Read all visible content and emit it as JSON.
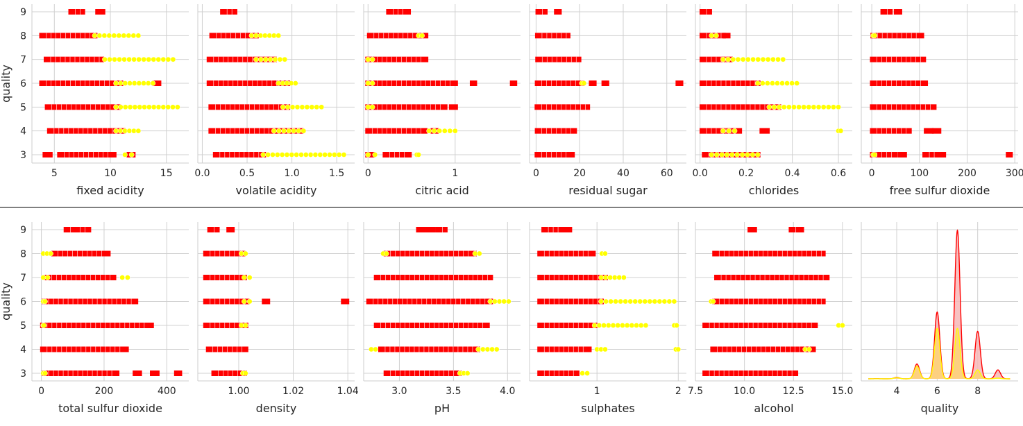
{
  "chart_data": [
    {
      "type": "scatter",
      "xlabel": "fixed acidity",
      "ylabel": "quality",
      "xlim": [
        3,
        17
      ],
      "xticks": [
        5,
        10,
        15
      ],
      "red": [
        [
          3,
          5.5,
          10.3
        ],
        [
          3,
          4.2,
          4.6
        ],
        [
          3,
          11.7,
          12.0
        ],
        [
          4,
          4.6,
          11.1
        ],
        [
          5,
          4.4,
          10.7
        ],
        [
          6,
          3.9,
          10.9
        ],
        [
          6,
          14.0,
          14.3
        ],
        [
          7,
          4.3,
          9.2
        ],
        [
          8,
          3.9,
          8.6
        ],
        [
          9,
          6.5,
          7.5
        ],
        [
          9,
          8.9,
          9.3
        ]
      ],
      "yellow": [
        [
          3,
          11.3,
          11.9
        ],
        [
          4,
          10.5,
          12.5
        ],
        [
          5,
          10.5,
          16.0
        ],
        [
          6,
          10.5,
          13.8
        ],
        [
          7,
          9.5,
          15.6
        ],
        [
          8,
          8.6,
          12.5
        ]
      ]
    },
    {
      "type": "scatter",
      "xlabel": "volatile acidity",
      "ylabel": "",
      "xlim": [
        -0.05,
        1.7
      ],
      "xticks": [
        0.0,
        0.5,
        1.0,
        1.5
      ],
      "red": [
        [
          3,
          0.15,
          0.68
        ],
        [
          4,
          0.1,
          0.8
        ],
        [
          4,
          0.85,
          1.1
        ],
        [
          5,
          0.1,
          0.95
        ],
        [
          6,
          0.08,
          0.95
        ],
        [
          7,
          0.08,
          0.8
        ],
        [
          8,
          0.11,
          0.6
        ],
        [
          9,
          0.23,
          0.36
        ]
      ],
      "yellow": [
        [
          3,
          0.68,
          1.58
        ],
        [
          4,
          0.8,
          1.13
        ],
        [
          5,
          0.9,
          1.33
        ],
        [
          6,
          0.85,
          1.04
        ],
        [
          7,
          0.6,
          0.92
        ],
        [
          8,
          0.55,
          0.85
        ]
      ]
    },
    {
      "type": "scatter",
      "xlabel": "citric acid",
      "ylabel": "",
      "xlim": [
        -0.05,
        1.75
      ],
      "xticks": [
        0,
        1
      ],
      "red": [
        [
          3,
          0.0,
          0.05
        ],
        [
          3,
          0.2,
          0.47
        ],
        [
          4,
          0.0,
          0.65
        ],
        [
          4,
          0.75,
          0.78
        ],
        [
          5,
          0.0,
          0.88
        ],
        [
          5,
          0.96,
          1.0
        ],
        [
          6,
          0.0,
          1.0
        ],
        [
          6,
          1.2,
          1.22
        ],
        [
          6,
          1.66,
          1.68
        ],
        [
          7,
          0.0,
          0.66
        ],
        [
          8,
          0.02,
          0.66
        ],
        [
          9,
          0.24,
          0.46
        ]
      ],
      "yellow": [
        [
          3,
          0.0,
          0.08
        ],
        [
          3,
          0.56,
          0.58
        ],
        [
          4,
          0.7,
          1.0
        ],
        [
          5,
          0.0,
          0.05
        ],
        [
          6,
          0.0,
          0.05
        ],
        [
          7,
          0.0,
          0.05
        ],
        [
          8,
          0.58,
          0.62
        ]
      ]
    },
    {
      "type": "scatter",
      "xlabel": "residual sugar",
      "ylabel": "",
      "xlim": [
        -3,
        69
      ],
      "xticks": [
        0,
        20,
        40,
        60
      ],
      "red": [
        [
          3,
          0.6,
          16.5
        ],
        [
          4,
          0.7,
          17.5
        ],
        [
          5,
          0.6,
          23.5
        ],
        [
          6,
          0.7,
          21
        ],
        [
          6,
          25.5,
          26.5
        ],
        [
          6,
          31.3,
          32.3
        ],
        [
          6,
          65.3,
          66.3
        ],
        [
          7,
          0.9,
          19.5
        ],
        [
          8,
          0.8,
          14.5
        ],
        [
          9,
          1.0,
          4.0
        ],
        [
          9,
          9.5,
          10.5
        ]
      ],
      "yellow": [
        [
          6,
          21,
          22
        ]
      ]
    },
    {
      "type": "scatter",
      "xlabel": "chlorides",
      "ylabel": "",
      "xlim": [
        -0.02,
        0.66
      ],
      "xticks": [
        0.0,
        0.2,
        0.4,
        0.6
      ],
      "red": [
        [
          3,
          0.02,
          0.25
        ],
        [
          4,
          0.01,
          0.17
        ],
        [
          4,
          0.27,
          0.29
        ],
        [
          5,
          0.01,
          0.34
        ],
        [
          6,
          0.01,
          0.25
        ],
        [
          7,
          0.01,
          0.13
        ],
        [
          8,
          0.01,
          0.1
        ],
        [
          8,
          0.11,
          0.12
        ],
        [
          9,
          0.01,
          0.04
        ]
      ],
      "yellow": [
        [
          3,
          0.05,
          0.25
        ],
        [
          4,
          0.1,
          0.15
        ],
        [
          4,
          0.6,
          0.61
        ],
        [
          5,
          0.3,
          0.6
        ],
        [
          6,
          0.25,
          0.42
        ],
        [
          7,
          0.1,
          0.36
        ],
        [
          8,
          0.05,
          0.07
        ]
      ]
    },
    {
      "type": "scatter",
      "xlabel": "free sulfur dioxide",
      "ylabel": "",
      "xlim": [
        -22,
        307
      ],
      "xticks": [
        0,
        100,
        200,
        300
      ],
      "red": [
        [
          3,
          2,
          48
        ],
        [
          3,
          60,
          68
        ],
        [
          3,
          112,
          138
        ],
        [
          3,
          145,
          150
        ],
        [
          3,
          287,
          290
        ],
        [
          4,
          2,
          78
        ],
        [
          4,
          115,
          124
        ],
        [
          4,
          132,
          140
        ],
        [
          5,
          2,
          130
        ],
        [
          6,
          2,
          112
        ],
        [
          7,
          2,
          108
        ],
        [
          8,
          3,
          104
        ],
        [
          9,
          24,
          38
        ],
        [
          9,
          52,
          58
        ]
      ],
      "yellow": [
        [
          3,
          3,
          6
        ],
        [
          8,
          3,
          6
        ]
      ]
    },
    {
      "type": "scatter",
      "xlabel": "total sulfur dioxide",
      "ylabel": "quality",
      "xlim": [
        -30,
        470
      ],
      "xticks": [
        0,
        200,
        400
      ],
      "red": [
        [
          3,
          10,
          240
        ],
        [
          3,
          300,
          312
        ],
        [
          3,
          355,
          368
        ],
        [
          3,
          432,
          440
        ],
        [
          4,
          5,
          270
        ],
        [
          5,
          5,
          335
        ],
        [
          5,
          342,
          350
        ],
        [
          6,
          10,
          300
        ],
        [
          7,
          20,
          230
        ],
        [
          8,
          40,
          212
        ],
        [
          9,
          80,
          100
        ],
        [
          9,
          110,
          150
        ]
      ],
      "yellow": [
        [
          3,
          6,
          12
        ],
        [
          5,
          6,
          8
        ],
        [
          6,
          6,
          12
        ],
        [
          7,
          6,
          20
        ],
        [
          7,
          258,
          275
        ],
        [
          8,
          6,
          30
        ]
      ]
    },
    {
      "type": "scatter",
      "xlabel": "density",
      "ylabel": "",
      "xlim": [
        0.985,
        1.0425
      ],
      "xticks": [
        1.0,
        1.02,
        1.04
      ],
      "red": [
        [
          3,
          0.991,
          1.002
        ],
        [
          4,
          0.989,
          1.0025
        ],
        [
          5,
          0.988,
          1.0025
        ],
        [
          6,
          0.988,
          1.003
        ],
        [
          6,
          1.0095,
          1.0105
        ],
        [
          6,
          1.0385,
          1.0395
        ],
        [
          7,
          0.988,
          1.002
        ],
        [
          8,
          0.988,
          1.0015
        ],
        [
          9,
          0.9895,
          0.992
        ],
        [
          9,
          0.9965,
          0.9975
        ]
      ],
      "yellow": [
        [
          3,
          1.0015,
          1.0025
        ],
        [
          5,
          1.001,
          1.0025
        ],
        [
          6,
          1.002,
          1.004
        ],
        [
          7,
          1.002,
          1.004
        ],
        [
          8,
          1.001,
          1.0025
        ]
      ]
    },
    {
      "type": "scatter",
      "xlabel": "pH",
      "ylabel": "",
      "xlim": [
        2.67,
        4.12
      ],
      "xticks": [
        3.0,
        3.5,
        4.0
      ],
      "red": [
        [
          3,
          2.88,
          3.55
        ],
        [
          4,
          2.83,
          3.72
        ],
        [
          5,
          2.79,
          3.81
        ],
        [
          6,
          2.72,
          3.84
        ],
        [
          7,
          2.79,
          3.84
        ],
        [
          8,
          2.88,
          3.69
        ],
        [
          9,
          3.18,
          3.22
        ],
        [
          9,
          3.27,
          3.31
        ],
        [
          9,
          3.36,
          3.42
        ]
      ],
      "yellow": [
        [
          3,
          3.56,
          3.63
        ],
        [
          4,
          2.74,
          2.78
        ],
        [
          4,
          3.73,
          3.9
        ],
        [
          6,
          3.84,
          4.01
        ],
        [
          8,
          2.85,
          2.88
        ],
        [
          8,
          3.7,
          3.74
        ]
      ]
    },
    {
      "type": "scatter",
      "xlabel": "sulphates",
      "ylabel": "",
      "xlim": [
        0.17,
        2.1
      ],
      "xticks": [
        1,
        2
      ],
      "red": [
        [
          3,
          0.3,
          0.75
        ],
        [
          4,
          0.3,
          0.9
        ],
        [
          5,
          0.3,
          0.97
        ],
        [
          6,
          0.3,
          1.05
        ],
        [
          7,
          0.3,
          1.1
        ],
        [
          8,
          0.3,
          0.95
        ],
        [
          9,
          0.35,
          0.55
        ],
        [
          9,
          0.61,
          0.66
        ]
      ],
      "yellow": [
        [
          3,
          0.82,
          0.88
        ],
        [
          4,
          1.0,
          1.1
        ],
        [
          4,
          1.97,
          2.0
        ],
        [
          5,
          0.97,
          1.6
        ],
        [
          5,
          1.95,
          1.98
        ],
        [
          6,
          1.05,
          1.95
        ],
        [
          7,
          1.05,
          1.33
        ],
        [
          8,
          1.06,
          1.1
        ]
      ]
    },
    {
      "type": "scatter",
      "xlabel": "alcohol",
      "ylabel": "",
      "xlim": [
        7.5,
        15.5
      ],
      "xticks": [
        7.5,
        10.0,
        12.5,
        15.0
      ],
      "red": [
        [
          3,
          8.0,
          12.6
        ],
        [
          4,
          8.4,
          13.5
        ],
        [
          5,
          8.0,
          13.6
        ],
        [
          6,
          8.5,
          14.0
        ],
        [
          7,
          8.6,
          14.2
        ],
        [
          8,
          8.5,
          14.0
        ],
        [
          9,
          10.3,
          10.5
        ],
        [
          9,
          12.4,
          12.9
        ]
      ],
      "yellow": [
        [
          4,
          13.1,
          13.3
        ],
        [
          5,
          14.8,
          15.0
        ],
        [
          6,
          8.3,
          8.4
        ]
      ]
    },
    {
      "type": "area",
      "xlabel": "quality",
      "ylabel": "",
      "xlim": [
        2.25,
        10.0
      ],
      "xticks": [
        4,
        6,
        8
      ],
      "red_density": {
        "weights": [
          0.001,
          0.01,
          0.1,
          0.45,
          1.0,
          0.32,
          0.06,
          0.001
        ],
        "peak": 1.0
      },
      "yellow_density": {
        "weights": [
          0.0005,
          0.008,
          0.085,
          0.34,
          0.34,
          0.06,
          0.005,
          0.0
        ],
        "peak": 0.34
      }
    }
  ],
  "ytick_labels": [
    "3",
    "4",
    "5",
    "6",
    "7",
    "8",
    "9"
  ],
  "colors": {
    "red": "#ff0000",
    "yellow": "#ffff00",
    "red_fill": "#f7b7b7",
    "yellow_fill": "#fdd17a",
    "grid": "#d0d0d0"
  }
}
